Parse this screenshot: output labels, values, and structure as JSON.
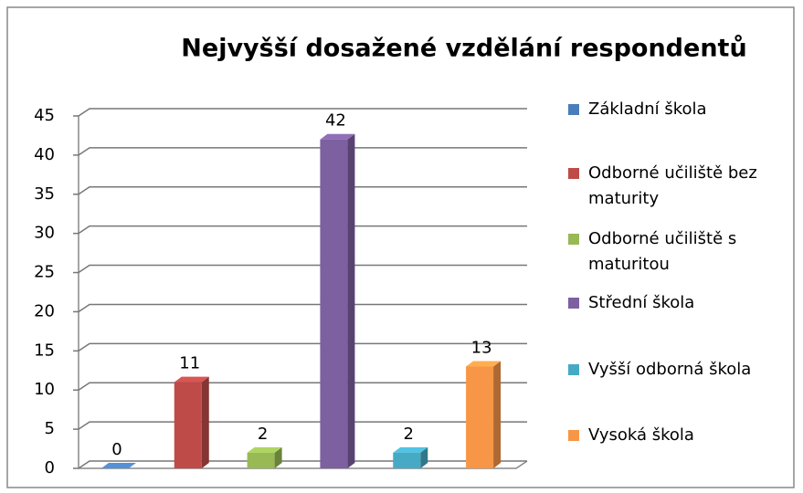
{
  "chart_data": {
    "type": "bar3d",
    "title": "Nejvyšší dosažené vzdělání respondentů",
    "series": [
      {
        "name": "Základní škola",
        "color": "#4a7ebb",
        "values": [
          0
        ]
      },
      {
        "name": "Odborné učiliště bez maturity",
        "color": "#be4b48",
        "values": [
          11
        ]
      },
      {
        "name": "Odborné učiliště s maturitou",
        "color": "#98b954",
        "values": [
          2
        ]
      },
      {
        "name": "Střední škola",
        "color": "#7d60a0",
        "values": [
          42
        ]
      },
      {
        "name": "Vyšší odborná škola",
        "color": "#46aac5",
        "values": [
          2
        ]
      },
      {
        "name": "Vysoká škola",
        "color": "#f79646",
        "values": [
          13
        ]
      }
    ],
    "ylim": [
      0,
      45
    ],
    "yticks": [
      0,
      5,
      10,
      15,
      20,
      25,
      30,
      35,
      40,
      45
    ],
    "grid": true,
    "legend": "right"
  }
}
